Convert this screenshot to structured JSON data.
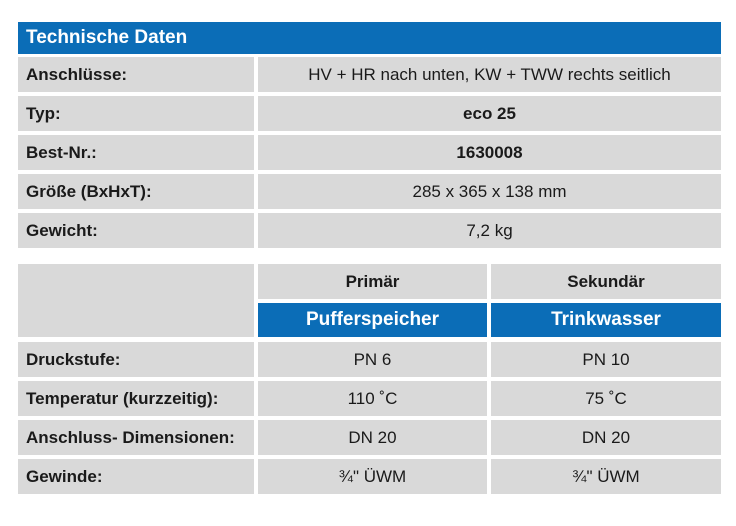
{
  "table1": {
    "title": "Technische Daten",
    "rows": [
      {
        "label": "Anschlüsse:",
        "value": "HV + HR nach unten, KW + TWW rechts seitlich"
      },
      {
        "label": "Typ:",
        "value": "eco 25"
      },
      {
        "label": "Best-Nr.:",
        "value": "1630008"
      },
      {
        "label": "Größe (BxHxT):",
        "value": "285 x 365 x 138 mm"
      },
      {
        "label": "Gewicht:",
        "value": "7,2 kg"
      }
    ]
  },
  "table2": {
    "columns": [
      "Primär",
      "Sekundär"
    ],
    "subheaders": [
      "Pufferspeicher",
      "Trinkwasser"
    ],
    "rows": [
      {
        "label": "Druckstufe:",
        "primary": "PN 6",
        "secondary": "PN 10"
      },
      {
        "label": "Temperatur (kurzzeitig):",
        "primary": "110 ˚C",
        "secondary": "75 ˚C"
      },
      {
        "label": "Anschluss- Dimensionen:",
        "primary": "DN 20",
        "secondary": "DN 20"
      },
      {
        "label": "Gewinde:",
        "primary": "¾\" ÜWM",
        "secondary": "¾\" ÜWM"
      }
    ]
  },
  "colors": {
    "accent": "#0b6db7",
    "cell": "#d9d9d9"
  }
}
